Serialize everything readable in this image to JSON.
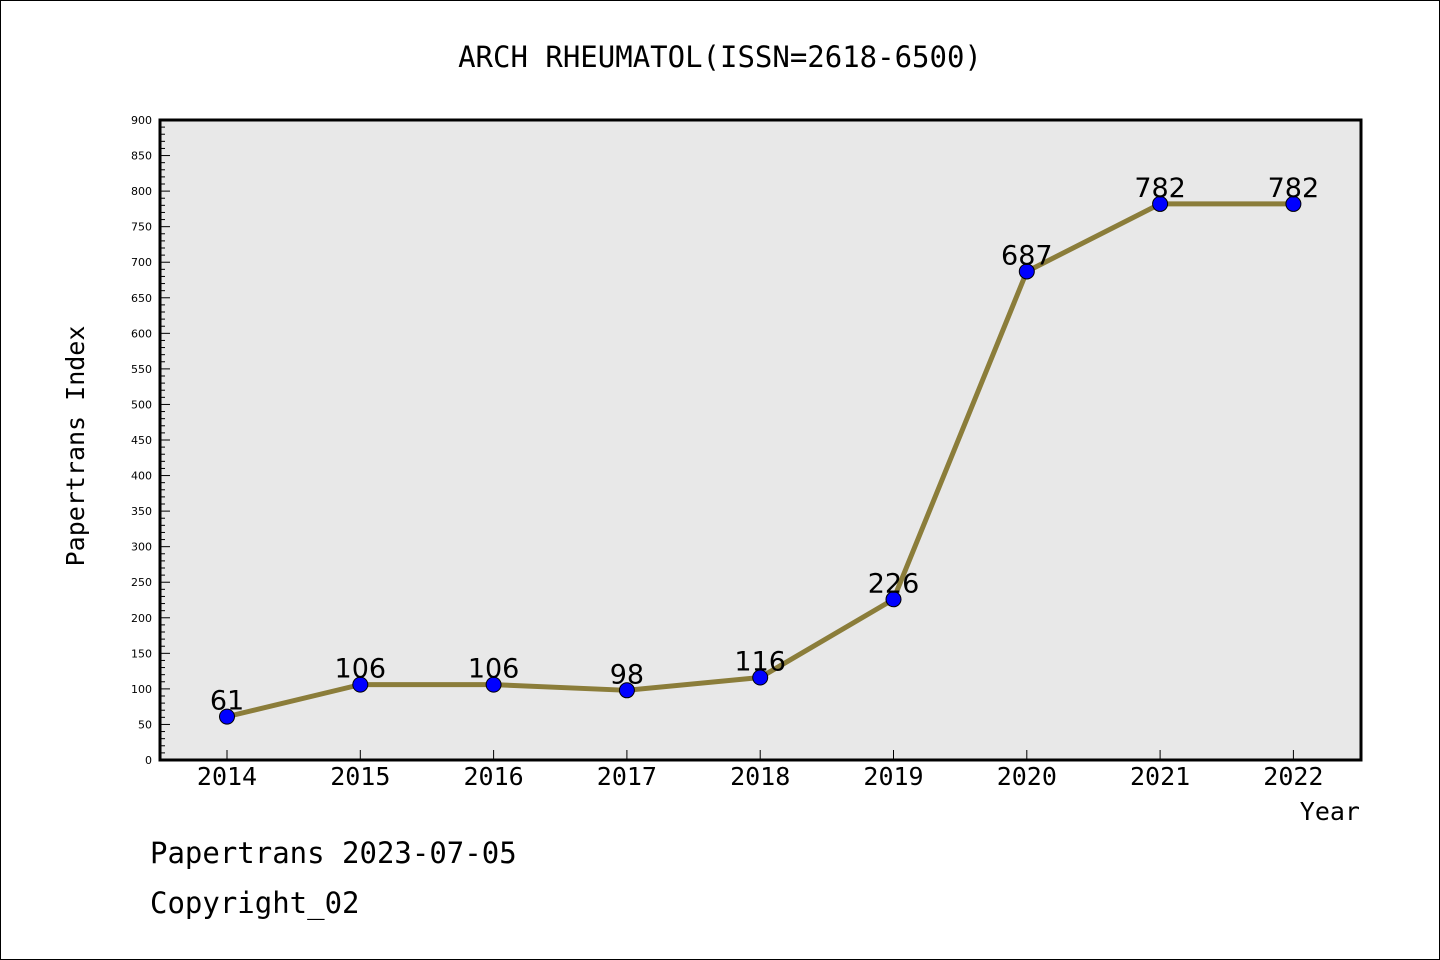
{
  "chart_data": {
    "type": "line",
    "title": "ARCH RHEUMATOL(ISSN=2618-6500)",
    "xlabel": "Year",
    "ylabel": "Papertrans Index",
    "categories": [
      "2014",
      "2015",
      "2016",
      "2017",
      "2018",
      "2019",
      "2020",
      "2021",
      "2022"
    ],
    "series": [
      {
        "values": [
          61,
          106,
          106,
          98,
          116,
          226,
          687,
          782,
          782
        ]
      }
    ],
    "ylim": [
      0,
      900
    ],
    "ytick_step": 50,
    "grid": false,
    "line_color": "#8b7d3a",
    "marker_color": "#0000ff",
    "plot_background": "#e8e8e8"
  },
  "footer": {
    "line1": "Papertrans 2023-07-05",
    "line2": "Copyright_02"
  }
}
